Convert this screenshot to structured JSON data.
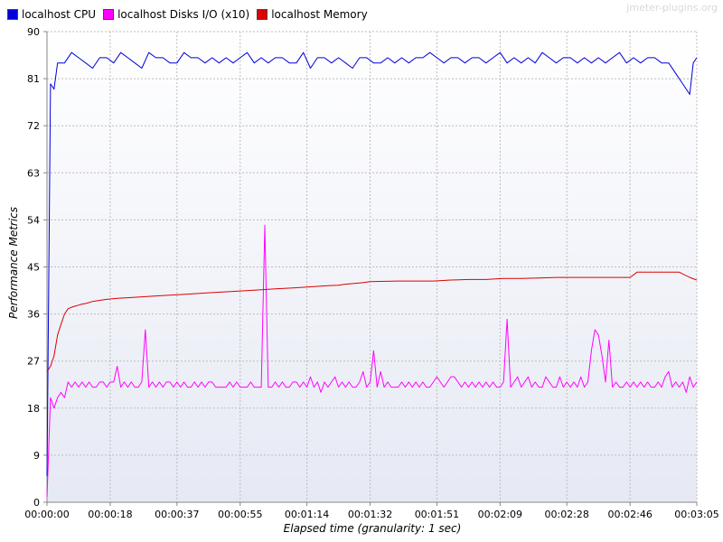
{
  "watermark": "jmeter-plugins.org",
  "colors": {
    "cpu": "#0000dd",
    "disks": "#ff00ff",
    "memory": "#dd0000",
    "grid": "#bdbdbd",
    "plot_bg_top": "#ffffff",
    "plot_bg_bottom": "#e6e9f4"
  },
  "chart_data": {
    "type": "line",
    "xlabel": "Elapsed time (granularity: 1 sec)",
    "ylabel": "Performance Metrics",
    "ylim": [
      0,
      90
    ],
    "xlim": [
      0,
      185
    ],
    "grid": true,
    "legend_position": "top-left",
    "y_ticks": [
      0,
      9,
      18,
      27,
      36,
      45,
      54,
      63,
      72,
      81,
      90
    ],
    "x_ticks": [
      {
        "value": 0,
        "label": "00:00:00"
      },
      {
        "value": 18,
        "label": "00:00:18"
      },
      {
        "value": 37,
        "label": "00:00:37"
      },
      {
        "value": 55,
        "label": "00:00:55"
      },
      {
        "value": 74,
        "label": "00:01:14"
      },
      {
        "value": 92,
        "label": "00:01:32"
      },
      {
        "value": 111,
        "label": "00:01:51"
      },
      {
        "value": 129,
        "label": "00:02:09"
      },
      {
        "value": 148,
        "label": "00:02:28"
      },
      {
        "value": 166,
        "label": "00:02:46"
      },
      {
        "value": 185,
        "label": "00:03:05"
      }
    ],
    "series": [
      {
        "name": "localhost CPU",
        "color_key": "cpu",
        "x": [
          0,
          1,
          2,
          3,
          5,
          7,
          9,
          11,
          13,
          15,
          17,
          19,
          21,
          23,
          25,
          27,
          29,
          31,
          33,
          35,
          37,
          39,
          41,
          43,
          45,
          47,
          49,
          51,
          53,
          55,
          57,
          59,
          61,
          63,
          65,
          67,
          69,
          71,
          73,
          75,
          77,
          79,
          81,
          83,
          85,
          87,
          89,
          91,
          93,
          95,
          97,
          99,
          101,
          103,
          105,
          107,
          109,
          111,
          113,
          115,
          117,
          119,
          121,
          123,
          125,
          127,
          129,
          131,
          133,
          135,
          137,
          139,
          141,
          143,
          145,
          147,
          149,
          151,
          153,
          155,
          157,
          159,
          161,
          163,
          165,
          167,
          169,
          171,
          173,
          175,
          177,
          179,
          181,
          183,
          184,
          185
        ],
        "y": [
          5,
          80,
          79,
          84,
          84,
          86,
          85,
          84,
          83,
          85,
          85,
          84,
          86,
          85,
          84,
          83,
          86,
          85,
          85,
          84,
          84,
          86,
          85,
          85,
          84,
          85,
          84,
          85,
          84,
          85,
          86,
          84,
          85,
          84,
          85,
          85,
          84,
          84,
          86,
          83,
          85,
          85,
          84,
          85,
          84,
          83,
          85,
          85,
          84,
          84,
          85,
          84,
          85,
          84,
          85,
          85,
          86,
          85,
          84,
          85,
          85,
          84,
          85,
          85,
          84,
          85,
          86,
          84,
          85,
          84,
          85,
          84,
          86,
          85,
          84,
          85,
          85,
          84,
          85,
          84,
          85,
          84,
          85,
          86,
          84,
          85,
          84,
          85,
          85,
          84,
          84,
          82,
          80,
          78,
          84,
          85
        ]
      },
      {
        "name": "localhost Disks I/O (x10)",
        "color_key": "disks",
        "x": [
          0,
          1,
          2,
          3,
          4,
          5,
          6,
          7,
          8,
          9,
          10,
          11,
          12,
          13,
          14,
          15,
          16,
          17,
          18,
          19,
          20,
          21,
          22,
          23,
          24,
          25,
          26,
          27,
          28,
          29,
          30,
          31,
          32,
          33,
          34,
          35,
          36,
          37,
          38,
          39,
          40,
          41,
          42,
          43,
          44,
          45,
          46,
          47,
          48,
          49,
          50,
          51,
          52,
          53,
          54,
          55,
          56,
          57,
          58,
          59,
          60,
          61,
          62,
          63,
          64,
          65,
          66,
          67,
          68,
          69,
          70,
          71,
          72,
          73,
          74,
          75,
          76,
          77,
          78,
          79,
          80,
          81,
          82,
          83,
          84,
          85,
          86,
          87,
          88,
          89,
          90,
          91,
          92,
          93,
          94,
          95,
          96,
          97,
          98,
          99,
          100,
          101,
          102,
          103,
          104,
          105,
          106,
          107,
          108,
          109,
          110,
          111,
          112,
          113,
          114,
          115,
          116,
          117,
          118,
          119,
          120,
          121,
          122,
          123,
          124,
          125,
          126,
          127,
          128,
          129,
          130,
          131,
          132,
          133,
          134,
          135,
          136,
          137,
          138,
          139,
          140,
          141,
          142,
          143,
          144,
          145,
          146,
          147,
          148,
          149,
          150,
          151,
          152,
          153,
          154,
          155,
          156,
          157,
          158,
          159,
          160,
          161,
          162,
          163,
          164,
          165,
          166,
          167,
          168,
          169,
          170,
          171,
          172,
          173,
          174,
          175,
          176,
          177,
          178,
          179,
          180,
          181,
          182,
          183,
          184,
          185
        ],
        "y": [
          1,
          20,
          18,
          20,
          21,
          20,
          23,
          22,
          23,
          22,
          23,
          22,
          23,
          22,
          22,
          23,
          23,
          22,
          23,
          23,
          26,
          22,
          23,
          22,
          23,
          22,
          22,
          23,
          33,
          22,
          23,
          22,
          23,
          22,
          23,
          23,
          22,
          23,
          22,
          23,
          22,
          22,
          23,
          22,
          23,
          22,
          23,
          23,
          22,
          22,
          22,
          22,
          23,
          22,
          23,
          22,
          22,
          22,
          23,
          22,
          22,
          22,
          53,
          22,
          22,
          23,
          22,
          23,
          22,
          22,
          23,
          23,
          22,
          23,
          22,
          24,
          22,
          23,
          21,
          23,
          22,
          23,
          24,
          22,
          23,
          22,
          23,
          22,
          22,
          23,
          25,
          22,
          23,
          29,
          22,
          25,
          22,
          23,
          22,
          22,
          22,
          23,
          22,
          23,
          22,
          23,
          22,
          23,
          22,
          22,
          23,
          24,
          23,
          22,
          23,
          24,
          24,
          23,
          22,
          23,
          22,
          23,
          22,
          23,
          22,
          23,
          22,
          23,
          22,
          22,
          23,
          35,
          22,
          23,
          24,
          22,
          23,
          24,
          22,
          23,
          22,
          22,
          24,
          23,
          22,
          22,
          24,
          22,
          23,
          22,
          23,
          22,
          24,
          22,
          23,
          29,
          33,
          32,
          28,
          23,
          31,
          22,
          23,
          22,
          22,
          23,
          22,
          23,
          22,
          23,
          22,
          23,
          22,
          22,
          23,
          22,
          24,
          25,
          22,
          23,
          22,
          23,
          21,
          24,
          22,
          23
        ]
      },
      {
        "name": "localhost Memory",
        "color_key": "memory",
        "x": [
          0,
          1,
          2,
          3,
          4,
          5,
          6,
          7,
          8,
          9,
          10,
          11,
          12,
          13,
          15,
          17,
          20,
          25,
          30,
          35,
          40,
          45,
          50,
          55,
          60,
          65,
          70,
          75,
          80,
          83,
          85,
          90,
          92,
          100,
          110,
          115,
          120,
          125,
          130,
          135,
          140,
          145,
          150,
          155,
          160,
          166,
          168,
          170,
          175,
          180,
          183,
          185
        ],
        "y": [
          25,
          26,
          28,
          32,
          34,
          36,
          37,
          37.3,
          37.5,
          37.7,
          37.9,
          38,
          38.2,
          38.4,
          38.6,
          38.8,
          39,
          39.2,
          39.4,
          39.6,
          39.8,
          40,
          40.2,
          40.4,
          40.6,
          40.8,
          41,
          41.2,
          41.4,
          41.5,
          41.7,
          42,
          42.2,
          42.3,
          42.3,
          42.5,
          42.6,
          42.6,
          42.8,
          42.8,
          42.9,
          43,
          43,
          43,
          43,
          43,
          44,
          44,
          44,
          44,
          43,
          42.5
        ]
      }
    ]
  }
}
